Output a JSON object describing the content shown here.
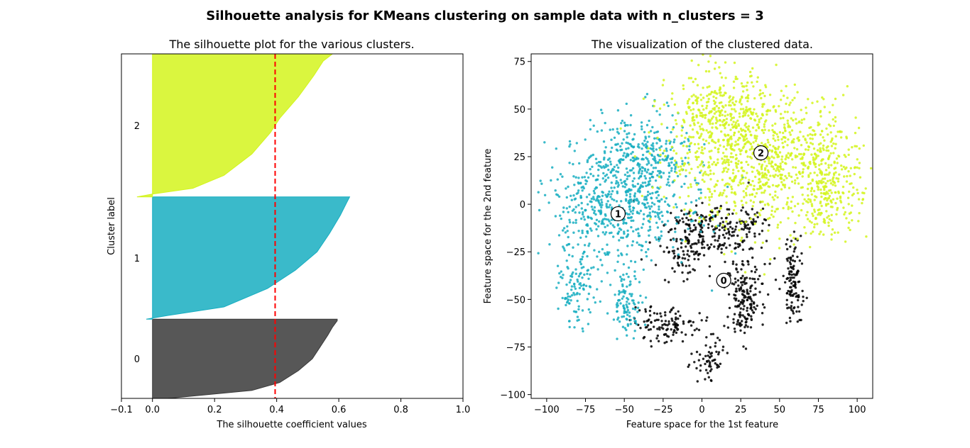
{
  "figure": {
    "suptitle": "Silhouette analysis for KMeans clustering on sample data with n_clusters = 3",
    "background": "#ffffff"
  },
  "chart_data": [
    {
      "type": "area",
      "title": "The silhouette plot for the various clusters.",
      "xlabel": "The silhouette coefficient values",
      "ylabel": "Cluster label",
      "xlim": [
        -0.1,
        1.0
      ],
      "xticks": [
        -0.1,
        0.0,
        0.2,
        0.4,
        0.6,
        0.8,
        1.0
      ],
      "xtick_labels": [
        "−0.1",
        "0.0",
        "0.2",
        "0.4",
        "0.6",
        "0.8",
        "1.0"
      ],
      "ylim": [
        0,
        10000
      ],
      "grid": false,
      "average_silhouette": 0.395,
      "average_line_color": "#ff0000",
      "clusters": [
        {
          "label": "0",
          "color": "#3a3a3a",
          "y_lower": 0,
          "y_upper": 2300,
          "profile": [
            [
              0.0,
              0.05
            ],
            [
              0.1,
              0.32
            ],
            [
              0.2,
              0.41
            ],
            [
              0.35,
              0.47
            ],
            [
              0.5,
              0.515
            ],
            [
              0.65,
              0.54
            ],
            [
              0.8,
              0.565
            ],
            [
              0.9,
              0.58
            ],
            [
              0.98,
              0.595
            ],
            [
              1.0,
              0.595
            ]
          ]
        },
        {
          "label": "1",
          "color": "#17aec1",
          "y_lower": 2300,
          "y_upper": 5850,
          "profile": [
            [
              0.0,
              -0.02
            ],
            [
              0.03,
              0.05
            ],
            [
              0.1,
              0.23
            ],
            [
              0.25,
              0.37
            ],
            [
              0.4,
              0.46
            ],
            [
              0.55,
              0.53
            ],
            [
              0.7,
              0.57
            ],
            [
              0.85,
              0.605
            ],
            [
              0.95,
              0.625
            ],
            [
              1.0,
              0.635
            ]
          ]
        },
        {
          "label": "2",
          "color": "#d3f41d",
          "y_lower": 5850,
          "y_upper": 10000,
          "profile": [
            [
              0.0,
              -0.05
            ],
            [
              0.02,
              0.0
            ],
            [
              0.06,
              0.13
            ],
            [
              0.15,
              0.23
            ],
            [
              0.3,
              0.32
            ],
            [
              0.45,
              0.38
            ],
            [
              0.55,
              0.41
            ],
            [
              0.7,
              0.47
            ],
            [
              0.85,
              0.52
            ],
            [
              0.95,
              0.55
            ],
            [
              1.0,
              0.58
            ]
          ]
        }
      ]
    },
    {
      "type": "scatter",
      "title": "The visualization of the clustered data.",
      "xlabel": "Feature space for the 1st feature",
      "ylabel": "Feature space for the 2nd feature",
      "xlim": [
        -110,
        110
      ],
      "ylim": [
        -102,
        79
      ],
      "xticks": [
        -100,
        -75,
        -50,
        -25,
        0,
        25,
        50,
        75,
        100
      ],
      "xtick_labels": [
        "−100",
        "−75",
        "−50",
        "−25",
        "0",
        "25",
        "50",
        "75",
        "100"
      ],
      "yticks": [
        -100,
        -75,
        -50,
        -25,
        0,
        25,
        50,
        75
      ],
      "ytick_labels": [
        "−100",
        "−75",
        "−50",
        "−25",
        "0",
        "25",
        "50",
        "75"
      ],
      "grid": false,
      "series": [
        {
          "label": "0",
          "color": "#000000",
          "center": [
            14,
            -40
          ],
          "clusters": [
            {
              "cx": 5,
              "cy": -15,
              "sx": 15,
              "sy": 8,
              "n": 230
            },
            {
              "cx": -12,
              "cy": -27,
              "sx": 6,
              "sy": 6,
              "n": 50
            },
            {
              "cx": 32,
              "cy": -10,
              "sx": 6,
              "sy": 4,
              "n": 35
            },
            {
              "cx": 27,
              "cy": -50,
              "sx": 6,
              "sy": 11,
              "n": 170
            },
            {
              "cx": 59,
              "cy": -40,
              "sx": 3.5,
              "sy": 11,
              "n": 120
            },
            {
              "cx": -22,
              "cy": -63,
              "sx": 11,
              "sy": 5,
              "n": 110
            },
            {
              "cx": 5,
              "cy": -82,
              "sx": 5,
              "sy": 6,
              "n": 60
            }
          ]
        },
        {
          "label": "1",
          "color": "#17aec1",
          "center": [
            -54,
            -5
          ],
          "clusters": [
            {
              "cx": -55,
              "cy": 0,
              "sx": 24,
              "sy": 15,
              "n": 620
            },
            {
              "cx": -38,
              "cy": 25,
              "sx": 15,
              "sy": 12,
              "n": 260
            },
            {
              "cx": -80,
              "cy": -45,
              "sx": 6,
              "sy": 9,
              "n": 110
            },
            {
              "cx": -48,
              "cy": -52,
              "sx": 5,
              "sy": 8,
              "n": 100
            }
          ]
        },
        {
          "label": "2",
          "color": "#d3f41d",
          "center": [
            38,
            27
          ],
          "clusters": [
            {
              "cx": 38,
              "cy": 24,
              "sx": 30,
              "sy": 18,
              "n": 960
            },
            {
              "cx": 10,
              "cy": 47,
              "sx": 16,
              "sy": 11,
              "n": 260
            },
            {
              "cx": 82,
              "cy": 10,
              "sx": 10,
              "sy": 13,
              "n": 210
            }
          ]
        }
      ]
    }
  ]
}
